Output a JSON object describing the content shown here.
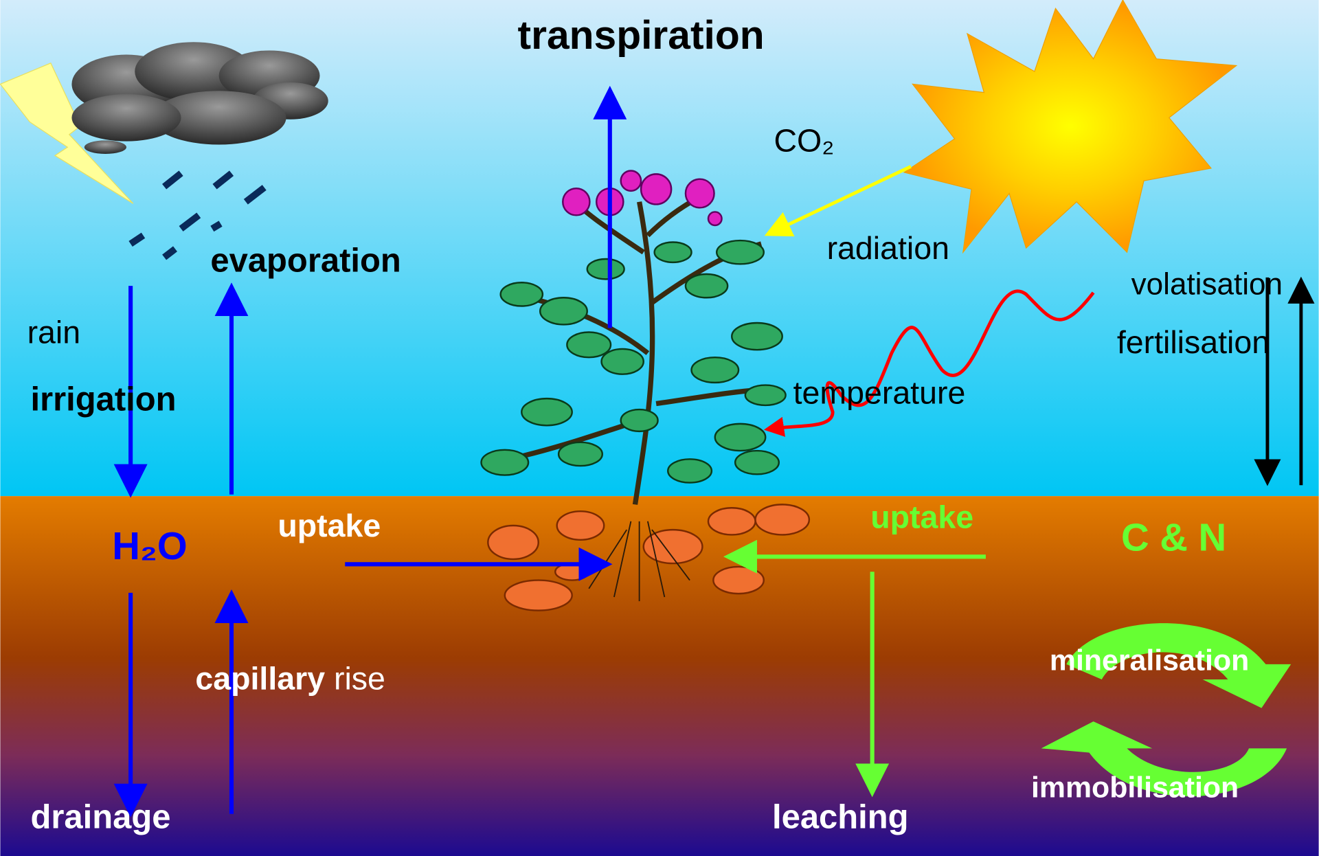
{
  "title": "transpiration",
  "atmosphere": {
    "co2": "CO₂",
    "radiation": "radiation",
    "temperature": "temperature",
    "evaporation": "evaporation",
    "rain": "rain",
    "irrigation": "irrigation",
    "volatisation": "volatisation",
    "fertilisation": "fertilisation"
  },
  "soil": {
    "water": "H₂O",
    "water_uptake": "uptake",
    "nutrients": "C & N",
    "nutrient_uptake": "uptake",
    "capillary": "capillary",
    "rise": "rise",
    "mineralisation": "mineralisation",
    "immobilisation": "immobilisation",
    "drainage": "drainage",
    "leaching": "leaching"
  }
}
